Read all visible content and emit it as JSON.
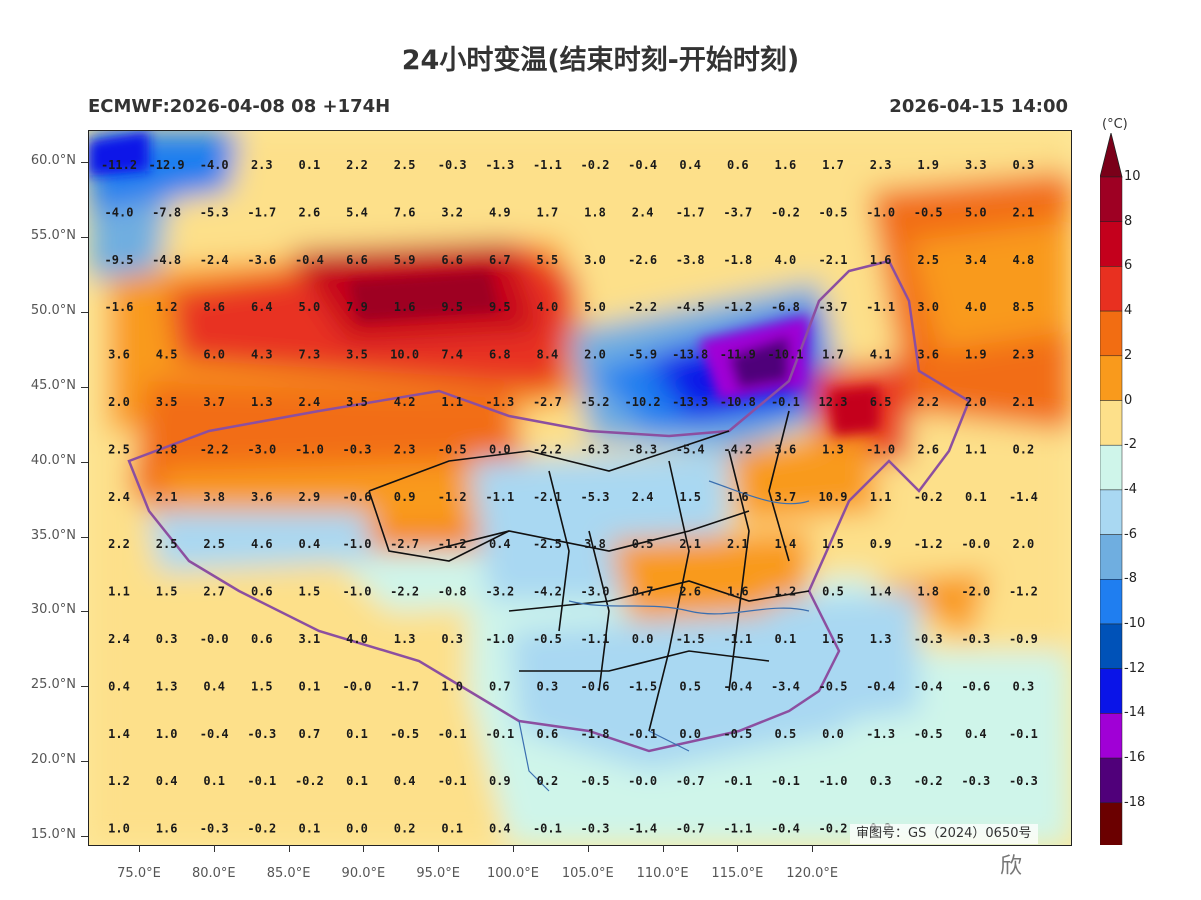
{
  "title": "24小时变温(结束时刻-开始时刻)",
  "subtitle_left": "ECMWF:2026-04-08 08 +174H",
  "subtitle_right": "2026-04-15 14:00",
  "approval": "审图号：GS（2024）0650号",
  "watermark": "欣",
  "colorbar": {
    "unit": "(°C)",
    "labels": [
      "10",
      "8",
      "6",
      "4",
      "2",
      "0",
      "-2",
      "-4",
      "-6",
      "-8",
      "-10",
      "-12",
      "-14",
      "-16",
      "-18"
    ],
    "colors": [
      "#9e0023",
      "#c4001c",
      "#e83020",
      "#f26d12",
      "#f99a1c",
      "#fde08a",
      "#cff5ea",
      "#a9d8f2",
      "#6faee0",
      "#1f7ef0",
      "#0052b8",
      "#0a14e8",
      "#a000d6",
      "#50007a",
      "#6b0000"
    ],
    "top_color": "#7a0019",
    "bottom_color": "#3a0000"
  },
  "axes": {
    "lat_labels": [
      "60.0°N",
      "55.0°N",
      "50.0°N",
      "45.0°N",
      "40.0°N",
      "35.0°N",
      "30.0°N",
      "25.0°N",
      "20.0°N",
      "15.0°N"
    ],
    "lon_labels": [
      "75.0°E",
      "80.0°E",
      "85.0°E",
      "90.0°E",
      "95.0°E",
      "100.0°E",
      "105.0°E",
      "110.0°E",
      "115.0°E",
      "120.0°E"
    ]
  },
  "grid_values": [
    [
      "-11.2",
      "-12.9",
      "-4.0",
      "2.3",
      "0.1",
      "2.2",
      "2.5",
      "-0.3",
      "-1.3",
      "-1.1",
      "-0.2",
      "-0.4",
      "0.4",
      "0.6",
      "1.6",
      "1.7",
      "2.3",
      "1.9",
      "3.3",
      "0.3"
    ],
    [
      "-4.0",
      "-7.8",
      "-5.3",
      "-1.7",
      "2.6",
      "5.4",
      "7.6",
      "3.2",
      "4.9",
      "1.7",
      "1.8",
      "2.4",
      "-1.7",
      "-3.7",
      "-0.2",
      "-0.5",
      "-1.0",
      "-0.5",
      "5.0",
      "2.1"
    ],
    [
      "-9.5",
      "-4.8",
      "-2.4",
      "-3.6",
      "-0.4",
      "6.6",
      "5.9",
      "6.6",
      "6.7",
      "5.5",
      "3.0",
      "-2.6",
      "-3.8",
      "-1.8",
      "4.0",
      "-2.1",
      "1.6",
      "2.5",
      "3.4",
      "4.8"
    ],
    [
      "-1.6",
      "1.2",
      "8.6",
      "6.4",
      "5.0",
      "7.9",
      "1.6",
      "9.5",
      "9.5",
      "4.0",
      "5.0",
      "-2.2",
      "-4.5",
      "-1.2",
      "-6.8",
      "-3.7",
      "-1.1",
      "3.0",
      "4.0",
      "8.5"
    ],
    [
      "3.6",
      "4.5",
      "6.0",
      "4.3",
      "7.3",
      "3.5",
      "10.0",
      "7.4",
      "6.8",
      "8.4",
      "2.0",
      "-5.9",
      "-13.8",
      "-11.9",
      "-10.1",
      "1.7",
      "4.1",
      "3.6",
      "1.9",
      "2.3"
    ],
    [
      "2.0",
      "3.5",
      "3.7",
      "1.3",
      "2.4",
      "3.5",
      "4.2",
      "1.1",
      "-1.3",
      "-2.7",
      "-5.2",
      "-10.2",
      "-13.3",
      "-10.8",
      "-0.1",
      "12.3",
      "6.5",
      "2.2",
      "2.0",
      "2.1"
    ],
    [
      "2.5",
      "2.8",
      "-2.2",
      "-3.0",
      "-1.0",
      "-0.3",
      "2.3",
      "-0.5",
      "0.0",
      "-2.2",
      "-6.3",
      "-8.3",
      "-5.4",
      "-4.2",
      "3.6",
      "1.3",
      "-1.0",
      "2.6",
      "1.1",
      "0.2"
    ],
    [
      "2.4",
      "2.1",
      "3.8",
      "3.6",
      "2.9",
      "-0.6",
      "0.9",
      "-1.2",
      "-1.1",
      "-2.1",
      "-5.3",
      "2.4",
      "1.5",
      "1.6",
      "3.7",
      "10.9",
      "1.1",
      "-0.2",
      "0.1",
      "-1.4"
    ],
    [
      "2.2",
      "2.5",
      "2.5",
      "4.6",
      "0.4",
      "-1.0",
      "-2.7",
      "-1.2",
      "0.4",
      "-2.5",
      "3.8",
      "0.5",
      "2.1",
      "2.1",
      "1.4",
      "1.5",
      "0.9",
      "-1.2",
      "-0.0",
      "2.0"
    ],
    [
      "1.1",
      "1.5",
      "2.7",
      "0.6",
      "1.5",
      "-1.0",
      "-2.2",
      "-0.8",
      "-3.2",
      "-4.2",
      "-3.0",
      "0.7",
      "2.6",
      "1.6",
      "1.2",
      "0.5",
      "1.4",
      "1.8",
      "-2.0",
      "-1.2"
    ],
    [
      "2.4",
      "0.3",
      "-0.0",
      "0.6",
      "3.1",
      "4.0",
      "1.3",
      "0.3",
      "-1.0",
      "-0.5",
      "-1.1",
      "0.0",
      "-1.5",
      "-1.1",
      "0.1",
      "1.5",
      "1.3",
      "-0.3",
      "-0.3",
      "-0.9"
    ],
    [
      "0.4",
      "1.3",
      "0.4",
      "1.5",
      "0.1",
      "-0.0",
      "-1.7",
      "1.0",
      "0.7",
      "0.3",
      "-0.6",
      "-1.5",
      "0.5",
      "-0.4",
      "-3.4",
      "-0.5",
      "-0.4",
      "-0.4",
      "-0.6",
      "0.3"
    ],
    [
      "1.4",
      "1.0",
      "-0.4",
      "-0.3",
      "0.7",
      "0.1",
      "-0.5",
      "-0.1",
      "-0.1",
      "0.6",
      "-1.8",
      "-0.1",
      "0.0",
      "-0.5",
      "0.5",
      "0.0",
      "-1.3",
      "-0.5",
      "0.4",
      "-0.1"
    ],
    [
      "1.2",
      "0.4",
      "0.1",
      "-0.1",
      "-0.2",
      "0.1",
      "0.4",
      "-0.1",
      "0.9",
      "0.2",
      "-0.5",
      "-0.0",
      "-0.7",
      "-0.1",
      "-0.1",
      "-1.0",
      "0.3",
      "-0.2",
      "-0.3",
      "-0.3"
    ],
    [
      "1.0",
      "1.6",
      "-0.3",
      "-0.2",
      "0.1",
      "0.0",
      "0.2",
      "0.1",
      "0.4",
      "-0.1",
      "-0.3",
      "-1.4",
      "-0.7",
      "-1.1",
      "-0.4",
      "-0.2",
      "0.2",
      "",
      "",
      ""
    ]
  ]
}
